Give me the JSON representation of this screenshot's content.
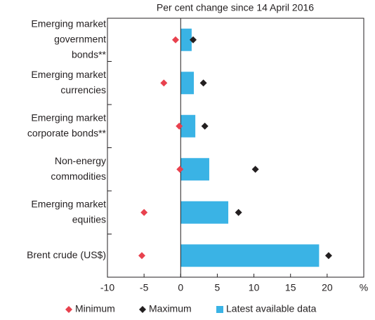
{
  "chart_data": {
    "type": "bar",
    "orientation": "horizontal",
    "title": "Per cent change since 14 April 2016",
    "categories": [
      [
        "Emerging market",
        "government",
        "bonds**"
      ],
      [
        "Emerging market",
        "currencies"
      ],
      [
        "Emerging market",
        "corporate bonds**"
      ],
      [
        "Non-energy",
        "commodities"
      ],
      [
        "Emerging market",
        "equities"
      ],
      [
        "Brent crude (US$)"
      ]
    ],
    "series": [
      {
        "name": "Minimum",
        "color": "#e8414e",
        "marker": "diamond",
        "values": [
          -0.7,
          -2.3,
          -0.2,
          -0.1,
          -5.0,
          -5.3
        ]
      },
      {
        "name": "Maximum",
        "color": "#231f20",
        "marker": "diamond",
        "values": [
          1.7,
          3.1,
          3.3,
          10.2,
          7.9,
          20.2
        ]
      },
      {
        "name": "Latest available data",
        "color": "#3ab3e5",
        "marker": "bar",
        "values": [
          1.5,
          1.8,
          2.0,
          3.9,
          6.5,
          18.9
        ]
      }
    ],
    "xlim": [
      -10,
      25
    ],
    "xticks": [
      -10,
      -5,
      0,
      5,
      10,
      15,
      20
    ],
    "xlabel": "%",
    "legend": "bottom"
  }
}
